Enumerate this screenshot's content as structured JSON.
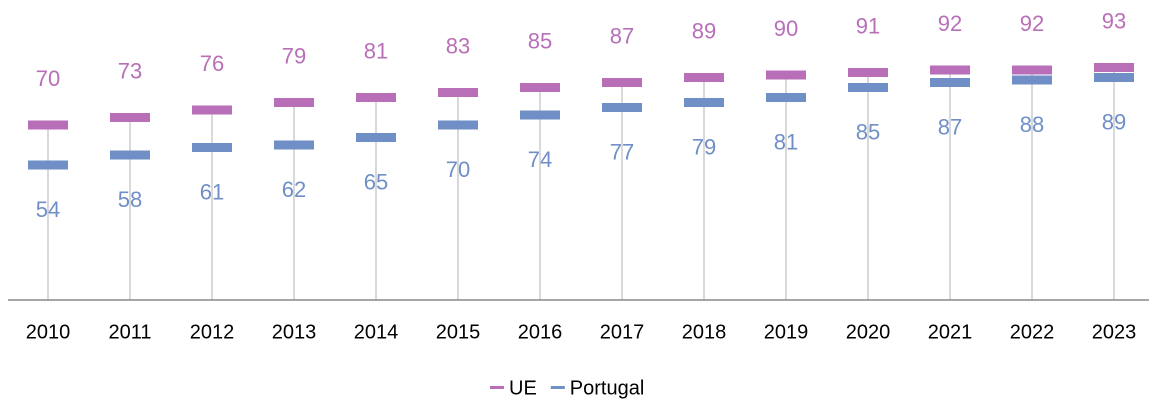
{
  "chart_data": {
    "type": "line",
    "categories": [
      "2010",
      "2011",
      "2012",
      "2013",
      "2014",
      "2015",
      "2016",
      "2017",
      "2018",
      "2019",
      "2020",
      "2021",
      "2022",
      "2023"
    ],
    "series": [
      {
        "name": "UE",
        "color": "#b86fb8",
        "values": [
          70,
          73,
          76,
          79,
          81,
          83,
          85,
          87,
          89,
          90,
          91,
          92,
          92,
          93
        ]
      },
      {
        "name": "Portugal",
        "color": "#6f8fc6",
        "values": [
          54,
          58,
          61,
          62,
          65,
          70,
          74,
          77,
          79,
          81,
          85,
          87,
          88,
          89
        ]
      }
    ],
    "ylim": [
      0,
      120
    ],
    "legend": "bottom",
    "data_labels": true,
    "drop_lines": true
  }
}
